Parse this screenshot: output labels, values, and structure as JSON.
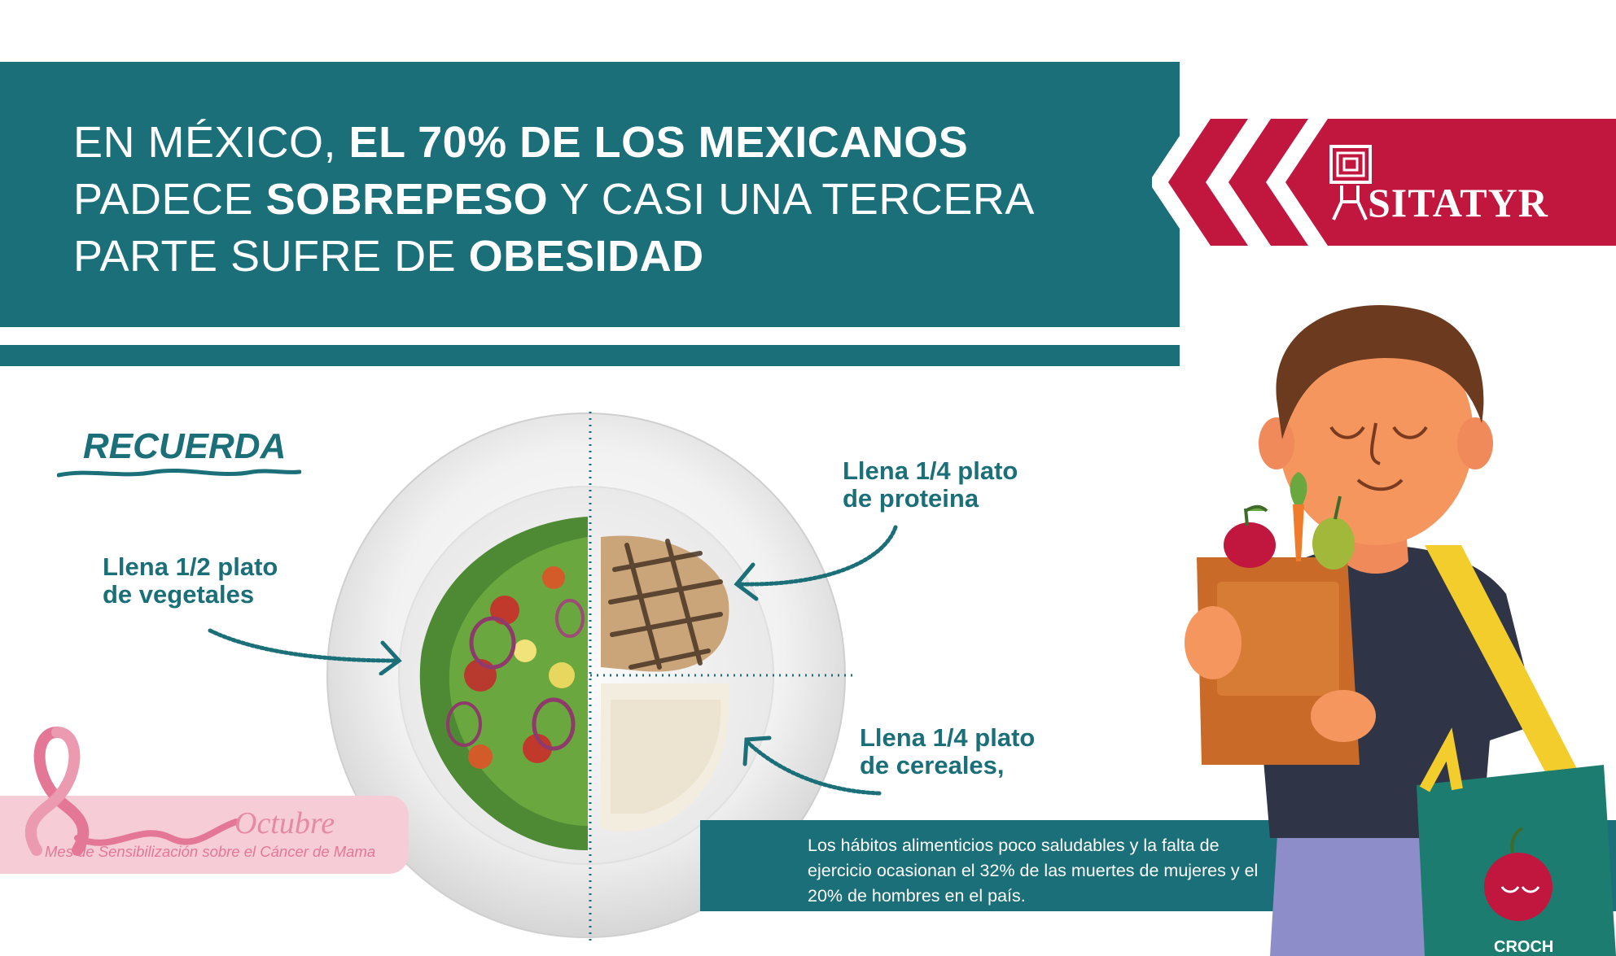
{
  "headline": {
    "line1_normal": "EN MÉXICO, ",
    "line1_bold": "EL 70% DE LOS MEXICANOS",
    "line2_normal_a": "PADECE ",
    "line2_bold": "SOBREPESO",
    "line2_normal_b": " Y CASI UNA TERCERA",
    "line3_normal": "PARTE SUFRE DE ",
    "line3_bold": "OBESIDAD"
  },
  "logo": {
    "text": "SITATYR"
  },
  "reminder": {
    "title": "RECUERDA"
  },
  "plate_labels": {
    "vegetables": {
      "line1": "Llena 1/2 plato",
      "line2": "de vegetales"
    },
    "protein": {
      "line1": "Llena 1/4 plato",
      "line2": "de proteina"
    },
    "cereals": {
      "line1": "Llena 1/4 plato",
      "line2": "de cereales,"
    }
  },
  "info": {
    "text": "Los hábitos alimenticios poco saludables y la falta de ejercicio ocasionan el 32% de las muertes de mujeres y el 20% de hombres en el país."
  },
  "awareness": {
    "month": "Octubre",
    "subtitle": "Mes de Sensibilización sobre el Cáncer de Mama"
  },
  "bag": {
    "brand": "CROCH"
  },
  "colors": {
    "teal": "#1b6f78",
    "crimson": "#c1163d",
    "pink": "#f6cdd7",
    "white": "#ffffff"
  }
}
